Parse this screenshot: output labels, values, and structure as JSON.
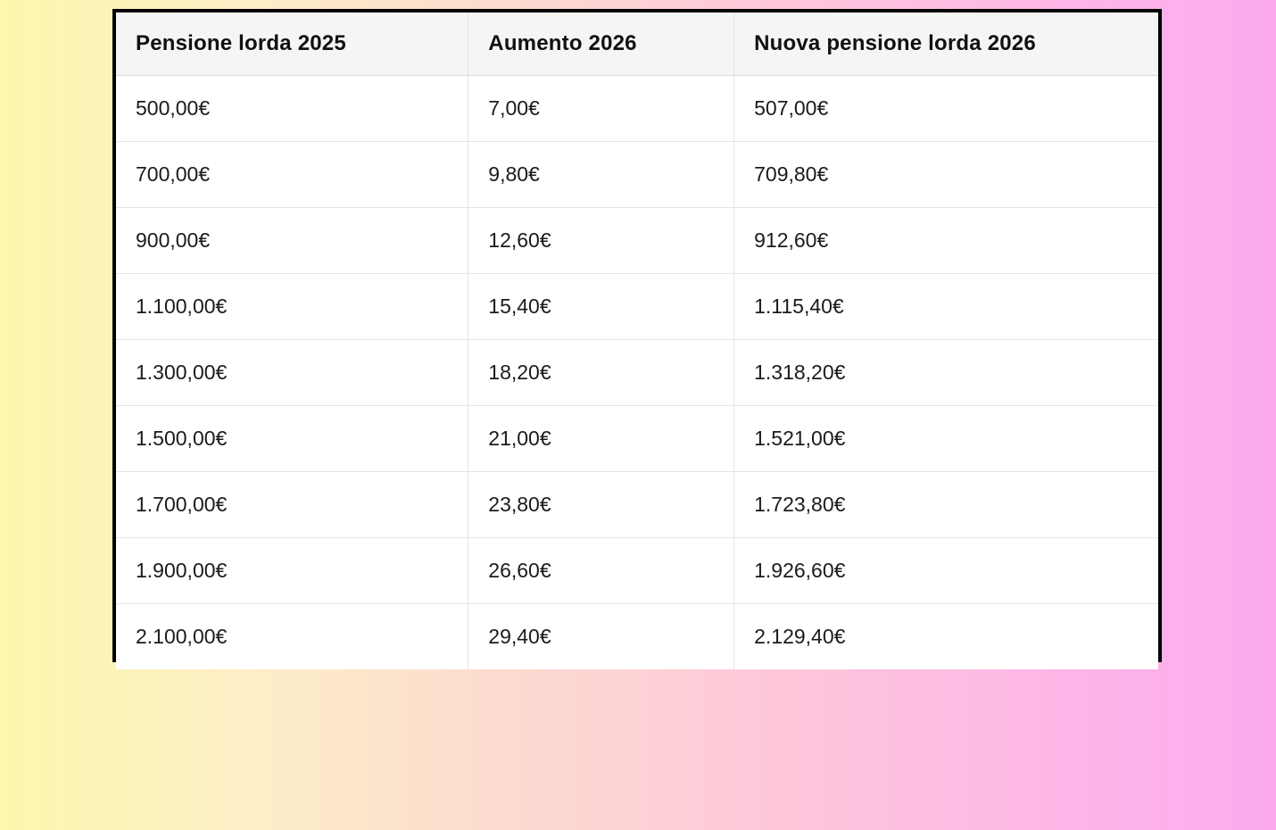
{
  "colors": {
    "background_gradient_left": "#fbf7ad",
    "background_gradient_middle": "#fcdccf",
    "background_gradient_right": "#fbaaf0",
    "table_border": "#000000",
    "header_background": "#f5f5f4",
    "cell_background": "#ffffff",
    "grid_line": "#e5e5e5",
    "text": "#1b1b1b"
  },
  "chart_data": {
    "type": "table",
    "title": "",
    "columns": [
      "Pensione lorda 2025",
      "Aumento 2026",
      "Nuova pensione lorda 2026"
    ],
    "rows": [
      [
        "500,00€",
        "7,00€",
        "507,00€"
      ],
      [
        "700,00€",
        "9,80€",
        "709,80€"
      ],
      [
        "900,00€",
        "12,60€",
        "912,60€"
      ],
      [
        "1.100,00€",
        "15,40€",
        "1.115,40€"
      ],
      [
        "1.300,00€",
        "18,20€",
        "1.318,20€"
      ],
      [
        "1.500,00€",
        "21,00€",
        "1.521,00€"
      ],
      [
        "1.700,00€",
        "23,80€",
        "1.723,80€"
      ],
      [
        "1.900,00€",
        "26,60€",
        "1.926,60€"
      ],
      [
        "2.100,00€",
        "29,40€",
        "2.129,40€"
      ]
    ]
  }
}
